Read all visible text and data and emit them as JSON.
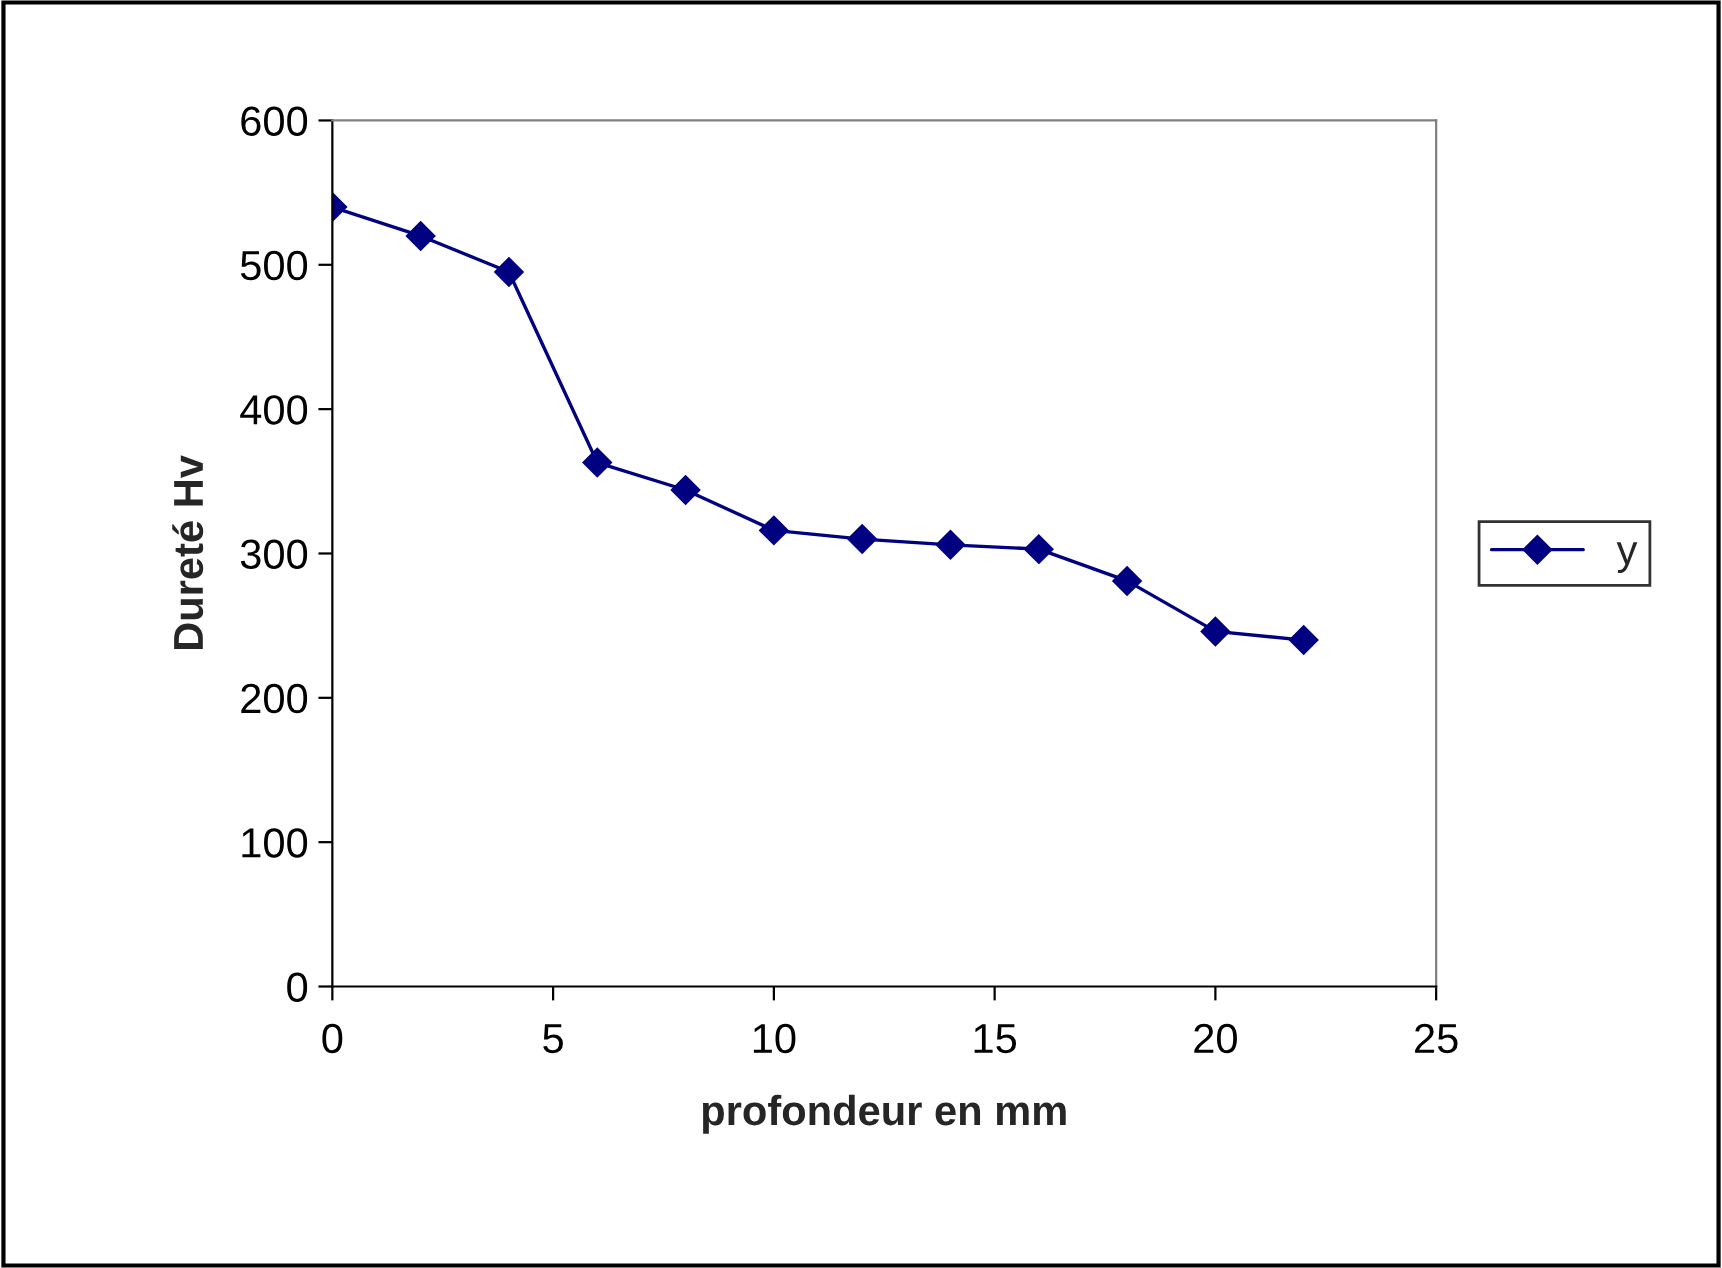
{
  "chart_data": {
    "type": "line",
    "xlabel": "profondeur en mm",
    "ylabel": "Dureté Hv",
    "x": [
      0,
      2,
      4,
      6,
      8,
      10,
      12,
      14,
      16,
      18,
      20,
      22
    ],
    "series": [
      {
        "name": "y",
        "color": "#000080",
        "values": [
          540,
          520,
          495,
          363,
          344,
          316,
          310,
          306,
          303,
          281,
          246,
          240
        ]
      }
    ],
    "xlim": [
      0,
      25
    ],
    "xticks": [
      0,
      5,
      10,
      15,
      20,
      25
    ],
    "ylim": [
      0,
      600
    ],
    "yticks": [
      0,
      100,
      200,
      300,
      400,
      500,
      600
    ],
    "marker": "diamond",
    "line_style": "solid",
    "legend": "right",
    "grid": false
  }
}
